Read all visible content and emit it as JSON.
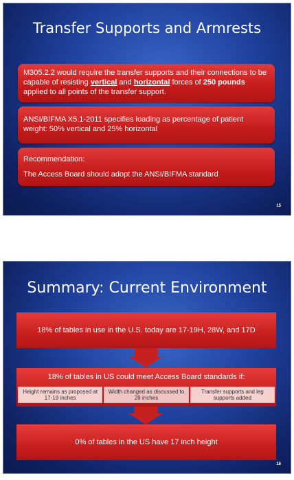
{
  "slide1": {
    "title": "Transfer Supports and Armrests",
    "box1": {
      "part1": "M305.2.2 would require the transfer supports and their connections to be capable of resisting ",
      "vertical": "vertical",
      "and": " and ",
      "horizontal": "horizontal",
      "part2": " forces of ",
      "bold_force": "250 pounds",
      "part3": " applied to all points of the transfer support."
    },
    "box2_text": "ANSI/BIFMA X5.1-2011 specifies loading as percentage of patient weight:  50% vertical and 25% horizontal",
    "box3": {
      "heading": "Recommendation:",
      "text": "The Access Board should adopt the ANSI/BIFMA standard"
    },
    "page_number": "15"
  },
  "slide2": {
    "title": "Summary: Current Environment",
    "box1_text": "18% of tables in use in the U.S. today are 17-19H, 28W, and 17D",
    "box2": {
      "heading": "18% of tables in US could meet Access Board standards if:",
      "cells": [
        "Height remains as proposed at 17-19 inches",
        "Width changed as discussed to 28 inches",
        "Transfer supports and leg supports added"
      ]
    },
    "box3_text": "0% of tables in the US have 17 inch height",
    "page_number": "16"
  },
  "colors": {
    "slide_bg": "#1e3f9a",
    "box_red": "#c41b1b",
    "cell_pink": "#f6cfcf"
  }
}
